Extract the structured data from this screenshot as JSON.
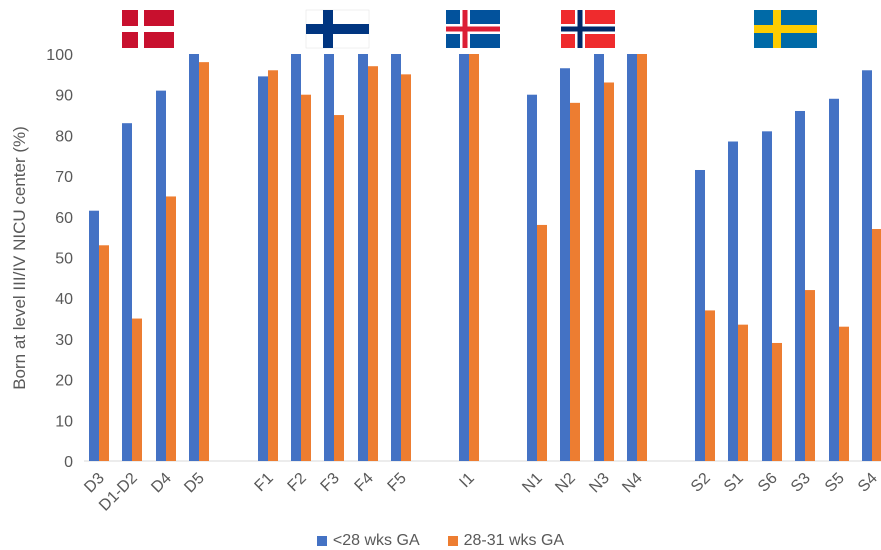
{
  "chart_data": {
    "type": "bar",
    "ylabel": "Born at level III/IV NICU center (%)",
    "ylim": [
      0,
      100
    ],
    "yticks": [
      0,
      10,
      20,
      30,
      40,
      50,
      60,
      70,
      80,
      90,
      100
    ],
    "grid": false,
    "legend_position": "bottom",
    "categories": [
      "D3",
      "D1-D2",
      "D4",
      "D5",
      "F1",
      "F2",
      "F3",
      "F4",
      "F5",
      "I1",
      "N1",
      "N2",
      "N3",
      "N4",
      "S2",
      "S1",
      "S6",
      "S3",
      "S5",
      "S4"
    ],
    "groups": [
      {
        "flag": "denmark-flag",
        "categories": [
          "D3",
          "D1-D2",
          "D4",
          "D5"
        ]
      },
      {
        "flag": "finland-flag",
        "categories": [
          "F1",
          "F2",
          "F3",
          "F4",
          "F5"
        ]
      },
      {
        "flag": "iceland-flag",
        "categories": [
          "I1"
        ]
      },
      {
        "flag": "norway-flag",
        "categories": [
          "N1",
          "N2",
          "N3",
          "N4"
        ]
      },
      {
        "flag": "sweden-flag",
        "categories": [
          "S2",
          "S1",
          "S6",
          "S3",
          "S5",
          "S4"
        ]
      }
    ],
    "series": [
      {
        "name": "<28 wks GA",
        "color": "#4472C4",
        "values": [
          61.5,
          83,
          91,
          100,
          94.5,
          100,
          100,
          100,
          100,
          100,
          90,
          96.5,
          100,
          100,
          71.5,
          78.5,
          81,
          86,
          89,
          96
        ]
      },
      {
        "name": "28-31 wks GA",
        "color": "#ED7D31",
        "values": [
          53,
          35,
          65,
          98,
          96,
          90,
          85,
          97,
          95,
          100,
          58,
          88,
          93,
          100,
          37,
          33.5,
          29,
          42,
          33,
          57
        ]
      }
    ]
  }
}
